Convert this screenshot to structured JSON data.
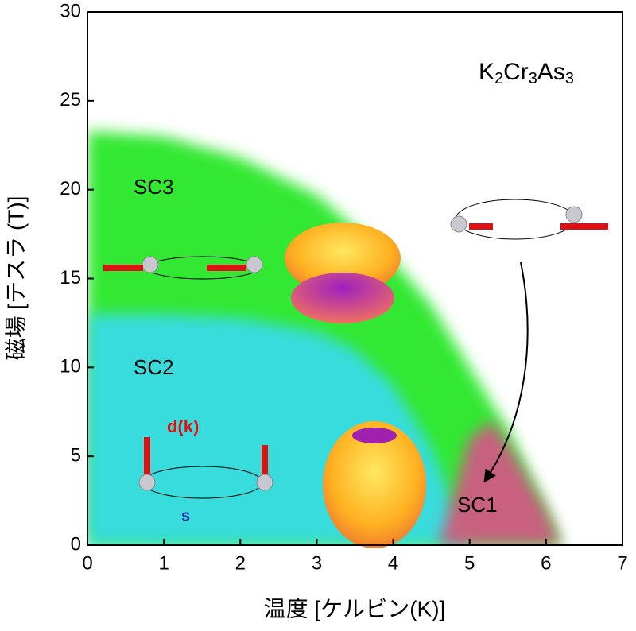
{
  "chart_data": {
    "type": "area",
    "title": "K2Cr3As3",
    "x_label": "温度 [ケルビン(K)]",
    "y_label": "磁場 [テスラ (T)]",
    "xlim": [
      0,
      7
    ],
    "xticks": [
      0,
      1,
      2,
      3,
      4,
      5,
      6,
      7
    ],
    "ylim": [
      0,
      30
    ],
    "yticks": [
      0,
      5,
      10,
      15,
      20,
      25,
      30
    ],
    "series": [
      {
        "name": "SC3",
        "color": "#33e833",
        "x": [
          0,
          1,
          2,
          3,
          4,
          4.5,
          5,
          5.5,
          6,
          6.2
        ],
        "values": [
          23.3,
          23,
          21.8,
          19.7,
          16,
          13.5,
          10,
          6.5,
          2,
          0
        ]
      },
      {
        "name": "SC2",
        "color": "#38dcdc",
        "x": [
          0,
          1,
          2,
          3,
          3.5,
          4,
          4.5,
          5
        ],
        "values": [
          13,
          13,
          12.8,
          12,
          11,
          9,
          5.5,
          0
        ]
      },
      {
        "name": "SC1",
        "color": "#c8607f",
        "x": [
          4.6,
          5,
          5.3,
          5.6,
          6,
          6.2
        ],
        "values": [
          0,
          6,
          7,
          5,
          2,
          0
        ]
      }
    ],
    "annotations": [
      "d(k)",
      "s"
    ]
  }
}
